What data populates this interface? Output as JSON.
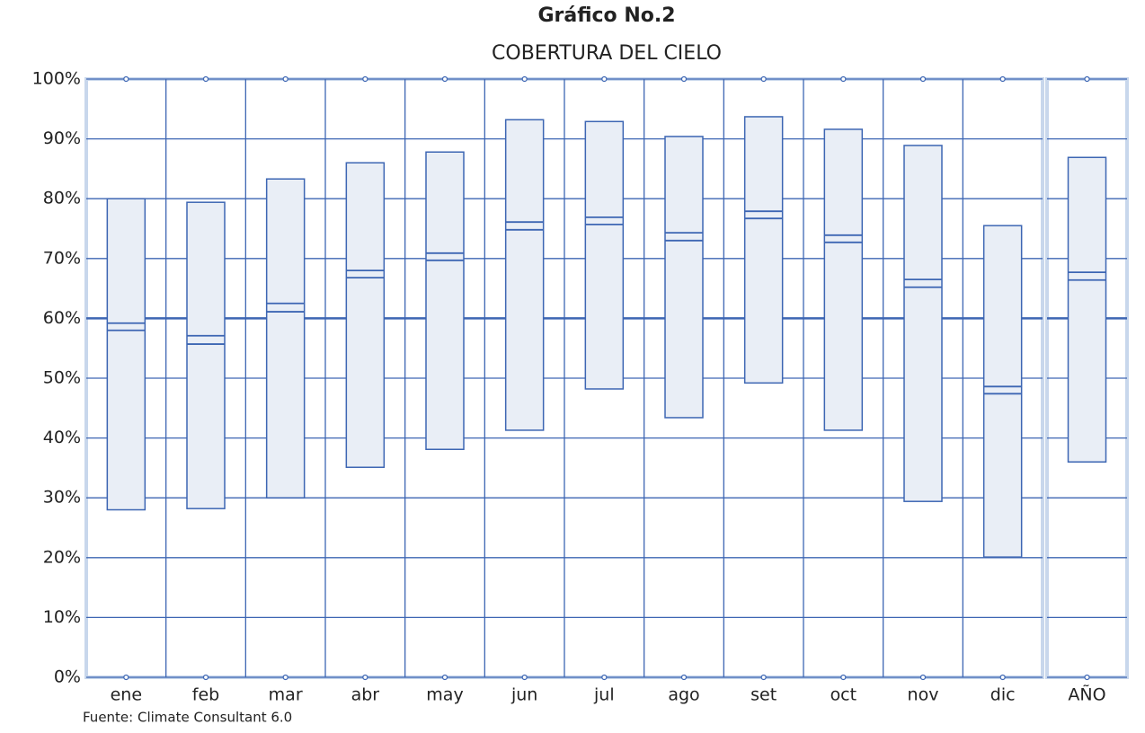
{
  "chart_data": {
    "type": "box",
    "title": "Gráfico No.2",
    "subtitle": "COBERTURA DEL CIELO",
    "annotation": "Fuente: Climate Consultant 6.0",
    "categories": [
      "ene",
      "feb",
      "mar",
      "abr",
      "may",
      "jun",
      "jul",
      "ago",
      "set",
      "oct",
      "nov",
      "dic",
      "AÑO"
    ],
    "high": [
      80,
      79.4,
      83.3,
      86,
      87.8,
      93.2,
      92.9,
      90.4,
      93.7,
      91.6,
      88.9,
      75.5,
      86.9
    ],
    "upper": [
      59.2,
      57.1,
      62.5,
      68,
      70.9,
      76.1,
      76.9,
      74.3,
      77.9,
      73.9,
      66.5,
      48.6,
      67.7
    ],
    "lower": [
      58,
      55.7,
      61.1,
      66.8,
      69.7,
      74.8,
      75.7,
      73,
      76.7,
      72.7,
      65.2,
      47.4,
      66.4
    ],
    "low": [
      28,
      28.2,
      30,
      35.1,
      38.1,
      41.3,
      48.2,
      43.4,
      49.2,
      41.3,
      29.4,
      20.1,
      36
    ],
    "max": [
      100,
      100,
      100,
      100,
      100,
      100,
      100,
      100,
      100,
      100,
      100,
      100,
      100
    ],
    "min": [
      0,
      0,
      0,
      0,
      0,
      0,
      0,
      0,
      0,
      0,
      0,
      0,
      0
    ],
    "reference_line": 60,
    "box_color": "#e9eef6",
    "line_color": "#3d66b3",
    "ylim": [
      0,
      100
    ],
    "yticks": [
      {
        "value": 0,
        "label": "0%"
      },
      {
        "value": 10,
        "label": "10%"
      },
      {
        "value": 20,
        "label": "20%"
      },
      {
        "value": 30,
        "label": "30%"
      },
      {
        "value": 40,
        "label": "40%"
      },
      {
        "value": 50,
        "label": "50%"
      },
      {
        "value": 60,
        "label": "60%"
      },
      {
        "value": 70,
        "label": "70%"
      },
      {
        "value": 80,
        "label": "80%"
      },
      {
        "value": 90,
        "label": "90%"
      },
      {
        "value": 100,
        "label": "100%"
      }
    ],
    "grid": true
  }
}
